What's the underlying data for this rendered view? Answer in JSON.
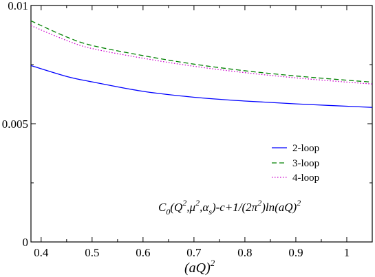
{
  "chart_data": {
    "type": "line",
    "x_axis": {
      "title_base": "(aQ)",
      "title_sup": "2",
      "range": [
        0.38,
        1.05
      ],
      "ticks": [
        0.4,
        0.5,
        0.6,
        0.7,
        0.8,
        0.9,
        1.0
      ],
      "tick_labels": [
        "0.4",
        "0.5",
        "0.6",
        "0.7",
        "0.8",
        "0.9",
        "1"
      ]
    },
    "y_axis": {
      "title": "",
      "range": [
        0,
        0.01
      ],
      "ticks": [
        0,
        0.005,
        0.01
      ],
      "tick_labels": [
        "0",
        "0.005",
        "0.01"
      ]
    },
    "grid": false,
    "legend_position": "right-middle",
    "series": [
      {
        "name": "2-loop",
        "color": "#0000ff",
        "dash": "solid",
        "x": [
          0.38,
          0.45,
          0.5,
          0.6,
          0.7,
          0.8,
          0.9,
          1.0,
          1.05
        ],
        "y": [
          0.00746,
          0.007,
          0.00677,
          0.00637,
          0.00612,
          0.00596,
          0.00584,
          0.00574,
          0.00569
        ]
      },
      {
        "name": "3-loop",
        "color": "#008000",
        "dash": "dashed",
        "x": [
          0.38,
          0.45,
          0.5,
          0.6,
          0.7,
          0.8,
          0.9,
          1.0,
          1.05
        ],
        "y": [
          0.00935,
          0.00867,
          0.00831,
          0.00788,
          0.00752,
          0.00724,
          0.00702,
          0.00684,
          0.00676
        ]
      },
      {
        "name": "4-loop",
        "color": "#cc00cc",
        "dash": "dotted",
        "x": [
          0.38,
          0.45,
          0.5,
          0.6,
          0.7,
          0.8,
          0.9,
          1.0,
          1.05
        ],
        "y": [
          0.00915,
          0.00852,
          0.00818,
          0.00777,
          0.00743,
          0.00716,
          0.00694,
          0.00676,
          0.00668
        ]
      }
    ],
    "annotation": {
      "c_label": "C",
      "c_sub": "0",
      "args_open": "(Q",
      "args_sup1": "2",
      "args_mu": ",μ",
      "args_sup2": "2",
      "args_alpha": ",α",
      "args_sub_s": "s",
      "rest": ")-c+1/(2π",
      "rest_sup": "2",
      "tail": ")ln(aQ)",
      "tail_sup": "2"
    }
  }
}
